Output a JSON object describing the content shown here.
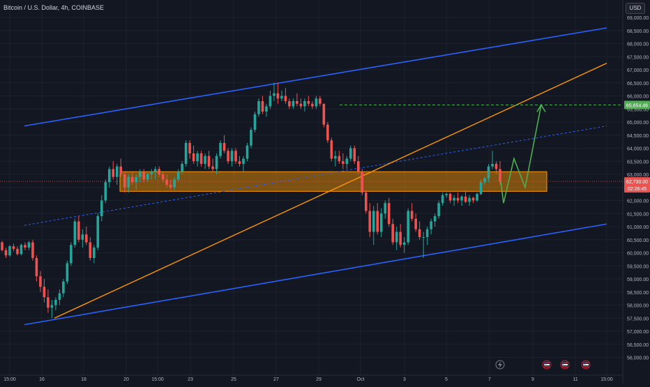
{
  "header": {
    "title": "Bitcoin / U.S. Dollar, 4h, COINBASE",
    "currency": "USD"
  },
  "badges": {
    "target": "65,654.46",
    "last_price": "62,730.00",
    "countdown": "02:26:45"
  },
  "colors": {
    "background": "#131722",
    "up": "#26a69a",
    "down": "#ef5350",
    "channel": "#2962ff",
    "trend": "#ff9800",
    "projection": "#4caf50",
    "zone_fill": "rgba(255,152,0,0.45)"
  },
  "icons": [
    "lightning-icon",
    "us-flag-event-icon"
  ],
  "chart_data": {
    "type": "candlestick",
    "timeframe": "4h",
    "ylim": [
      55800,
      69400
    ],
    "y_ticks": [
      "56,000.00",
      "56,500.00",
      "57,000.00",
      "57,500.00",
      "58,000.00",
      "58,500.00",
      "59,000.00",
      "59,500.00",
      "60,000.00",
      "60,500.00",
      "61,000.00",
      "61,500.00",
      "62,000.00",
      "62,500.00",
      "63,000.00",
      "63,500.00",
      "64,000.00",
      "64,500.00",
      "65,000.00",
      "65,500.00",
      "66,000.00",
      "66,500.00",
      "67,000.00",
      "67,500.00",
      "68,000.00",
      "68,500.00",
      "69,000.00"
    ],
    "x_ticks": [
      "15:00",
      "16",
      "18",
      "20",
      "15:00",
      "23",
      "25",
      "27",
      "29",
      "Oct",
      "3",
      "5",
      "7",
      "9",
      "11",
      "15:00"
    ],
    "ohlc": [
      [
        60400,
        60450,
        60050,
        60100
      ],
      [
        60100,
        60200,
        59800,
        59900
      ],
      [
        59900,
        60300,
        59850,
        60250
      ],
      [
        60250,
        60350,
        60050,
        60150
      ],
      [
        60150,
        60250,
        59900,
        59950
      ],
      [
        59950,
        60350,
        59900,
        60300
      ],
      [
        60300,
        60400,
        60100,
        60200
      ],
      [
        60200,
        60450,
        60100,
        60400
      ],
      [
        60400,
        60500,
        59700,
        59800
      ],
      [
        59800,
        59900,
        58900,
        59100
      ],
      [
        59100,
        59300,
        58500,
        58700
      ],
      [
        58700,
        59000,
        58100,
        58300
      ],
      [
        58300,
        58600,
        57700,
        57900
      ],
      [
        57900,
        58200,
        57500,
        58000
      ],
      [
        58000,
        58300,
        57800,
        58200
      ],
      [
        58200,
        58600,
        58000,
        58450
      ],
      [
        58450,
        59000,
        58300,
        58900
      ],
      [
        58900,
        59700,
        58800,
        59600
      ],
      [
        59600,
        60400,
        59500,
        60300
      ],
      [
        60300,
        61300,
        60200,
        61200
      ],
      [
        61200,
        61400,
        60400,
        60500
      ],
      [
        60500,
        60900,
        60200,
        60700
      ],
      [
        60700,
        61000,
        60300,
        60400
      ],
      [
        60400,
        60600,
        59700,
        59800
      ],
      [
        59800,
        60300,
        59600,
        60200
      ],
      [
        60200,
        61500,
        60100,
        61400
      ],
      [
        61400,
        62200,
        61200,
        62000
      ],
      [
        62000,
        62800,
        61900,
        62700
      ],
      [
        62700,
        63300,
        62500,
        63200
      ],
      [
        63200,
        63500,
        62800,
        62900
      ],
      [
        62900,
        63400,
        62600,
        63300
      ],
      [
        63300,
        63600,
        62900,
        63000
      ],
      [
        63000,
        63100,
        62300,
        62500
      ],
      [
        62500,
        63000,
        62300,
        62900
      ],
      [
        62900,
        63100,
        62600,
        62700
      ],
      [
        62700,
        63000,
        62400,
        62900
      ],
      [
        62900,
        63200,
        62700,
        63100
      ],
      [
        63100,
        63200,
        62700,
        62800
      ],
      [
        62800,
        63100,
        62700,
        63000
      ],
      [
        63000,
        63200,
        62800,
        63100
      ],
      [
        63100,
        63300,
        62800,
        63200
      ],
      [
        63200,
        63300,
        62900,
        63000
      ],
      [
        63000,
        63100,
        62700,
        62800
      ],
      [
        62800,
        63000,
        62500,
        62600
      ],
      [
        62600,
        62800,
        62400,
        62500
      ],
      [
        62500,
        62900,
        62400,
        62800
      ],
      [
        62800,
        63200,
        62700,
        63100
      ],
      [
        63100,
        63500,
        63000,
        63400
      ],
      [
        63400,
        64300,
        63300,
        64200
      ],
      [
        64200,
        64300,
        63600,
        63800
      ],
      [
        63800,
        64100,
        63400,
        63500
      ],
      [
        63500,
        63900,
        63300,
        63800
      ],
      [
        63800,
        63900,
        63300,
        63400
      ],
      [
        63400,
        63800,
        63200,
        63700
      ],
      [
        63700,
        63900,
        63200,
        63300
      ],
      [
        63300,
        63600,
        63100,
        63200
      ],
      [
        63200,
        63800,
        63000,
        63700
      ],
      [
        63700,
        64300,
        63600,
        64200
      ],
      [
        64200,
        64500,
        63800,
        63900
      ],
      [
        63900,
        64000,
        63400,
        63500
      ],
      [
        63500,
        64000,
        63300,
        63900
      ],
      [
        63900,
        64000,
        63400,
        63500
      ],
      [
        63500,
        63700,
        63300,
        63400
      ],
      [
        63400,
        63700,
        63100,
        63600
      ],
      [
        63600,
        64200,
        63500,
        64100
      ],
      [
        64100,
        64800,
        64000,
        64700
      ],
      [
        64700,
        65400,
        64600,
        65300
      ],
      [
        65300,
        65900,
        65200,
        65800
      ],
      [
        65800,
        66000,
        65300,
        65400
      ],
      [
        65400,
        65700,
        65200,
        65600
      ],
      [
        65600,
        66200,
        65500,
        66000
      ],
      [
        66000,
        66500,
        65800,
        66100
      ],
      [
        66100,
        66500,
        65700,
        65900
      ],
      [
        65900,
        66200,
        65800,
        66000
      ],
      [
        66000,
        66300,
        65700,
        65800
      ],
      [
        65800,
        65900,
        65500,
        65600
      ],
      [
        65600,
        65900,
        65500,
        65800
      ],
      [
        65800,
        66100,
        65600,
        65700
      ],
      [
        65700,
        65900,
        65500,
        65600
      ],
      [
        65600,
        65900,
        65400,
        65800
      ],
      [
        65800,
        66000,
        65600,
        65700
      ],
      [
        65700,
        65800,
        65500,
        65600
      ],
      [
        65600,
        66000,
        65500,
        65900
      ],
      [
        65900,
        66000,
        65600,
        65700
      ],
      [
        65700,
        65700,
        64800,
        64900
      ],
      [
        64900,
        65000,
        64200,
        64300
      ],
      [
        64300,
        64400,
        63500,
        63600
      ],
      [
        63600,
        63900,
        63300,
        63700
      ],
      [
        63700,
        63900,
        63400,
        63500
      ],
      [
        63500,
        63800,
        63200,
        63400
      ],
      [
        63400,
        63700,
        63200,
        63600
      ],
      [
        63600,
        64100,
        63500,
        64000
      ],
      [
        64000,
        64100,
        63400,
        63500
      ],
      [
        63500,
        63700,
        63000,
        63100
      ],
      [
        63100,
        63200,
        62200,
        62300
      ],
      [
        62300,
        62400,
        61500,
        61600
      ],
      [
        61600,
        61900,
        60600,
        60800
      ],
      [
        60800,
        61800,
        60300,
        61600
      ],
      [
        61600,
        61900,
        60700,
        60800
      ],
      [
        60800,
        61700,
        60600,
        61500
      ],
      [
        61500,
        62000,
        61300,
        61900
      ],
      [
        61900,
        62100,
        61000,
        61100
      ],
      [
        61100,
        61300,
        60300,
        60400
      ],
      [
        60400,
        61000,
        60100,
        60800
      ],
      [
        60800,
        61100,
        60200,
        60300
      ],
      [
        60300,
        60600,
        60000,
        60400
      ],
      [
        60400,
        61700,
        60300,
        61600
      ],
      [
        61600,
        61900,
        61200,
        61300
      ],
      [
        61300,
        61500,
        60800,
        60900
      ],
      [
        60900,
        61200,
        60500,
        60600
      ],
      [
        60600,
        60800,
        59800,
        60600
      ],
      [
        60600,
        61000,
        60300,
        60900
      ],
      [
        60900,
        61300,
        60700,
        61200
      ],
      [
        61200,
        61500,
        61000,
        61400
      ],
      [
        61400,
        62000,
        61300,
        61900
      ],
      [
        61900,
        62300,
        61800,
        62200
      ],
      [
        62200,
        62300,
        62100,
        62250
      ],
      [
        62250,
        62300,
        61900,
        62000
      ],
      [
        62000,
        62200,
        61800,
        62100
      ],
      [
        62100,
        62300,
        61900,
        62000
      ],
      [
        62000,
        62200,
        61800,
        62150
      ],
      [
        62150,
        62400,
        61900,
        61950
      ],
      [
        61950,
        62200,
        61800,
        62100
      ],
      [
        62100,
        62150,
        61900,
        62000
      ],
      [
        62000,
        62300,
        61950,
        62250
      ],
      [
        62250,
        62800,
        62200,
        62700
      ],
      [
        62700,
        62900,
        62600,
        62850
      ],
      [
        62850,
        63400,
        62700,
        63300
      ],
      [
        63300,
        63900,
        63200,
        63400
      ],
      [
        63400,
        63500,
        63000,
        63200
      ],
      [
        63200,
        63500,
        62600,
        62730
      ]
    ],
    "lines": [
      {
        "name": "channel-top",
        "from": [
          "2024-09-16",
          64850
        ],
        "to": [
          "2024-10-13",
          68600
        ]
      },
      {
        "name": "channel-bottom",
        "from": [
          "2024-09-16",
          57250
        ],
        "to": [
          "2024-10-13",
          61100
        ]
      },
      {
        "name": "channel-mid",
        "from": [
          "2024-09-16",
          61050
        ],
        "to": [
          "2024-10-13",
          64850
        ]
      },
      {
        "name": "trendline",
        "from": [
          "2024-09-17",
          57500
        ],
        "to": [
          "2024-10-13",
          67250
        ]
      },
      {
        "name": "target-level",
        "y": 65654.46
      }
    ],
    "zone": {
      "y_low": 62350,
      "y_high": 63100
    },
    "projection_path": [
      62730,
      61900,
      63600,
      62500,
      65654.46
    ]
  }
}
